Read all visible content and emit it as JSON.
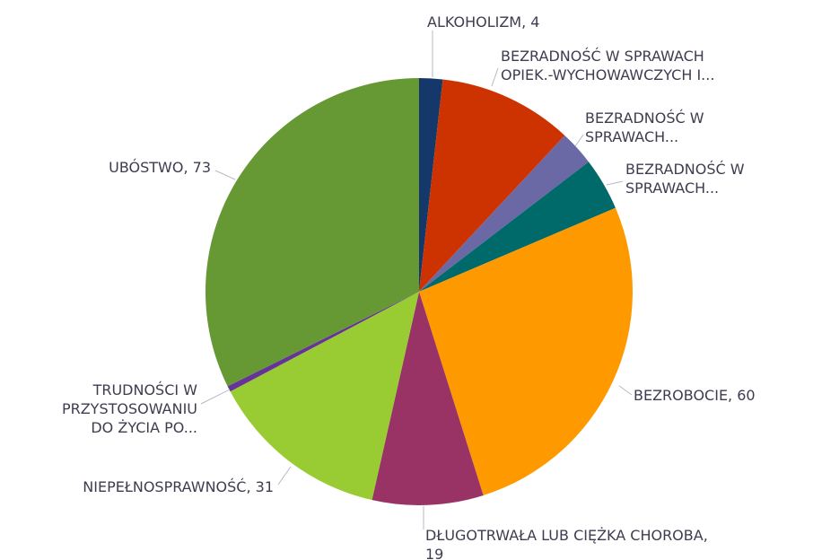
{
  "chart_data": {
    "type": "pie",
    "categories": [
      [
        "ALKOHOLIZM, 4"
      ],
      [
        "BEZRADNOŚĆ W SPRAWACH",
        "OPIEK.-WYCHOWAWCZYCH I..."
      ],
      [
        "BEZRADNOŚĆ W",
        "SPRAWACH..."
      ],
      [
        "BEZRADNOŚĆ W",
        "SPRAWACH..."
      ],
      [
        "BEZROBOCIE, 60"
      ],
      [
        "DŁUGOTRWAŁA LUB CIĘŻKA CHOROBA,",
        "19"
      ],
      [
        "NIEPEŁNOSPRAWNOŚĆ, 31"
      ],
      [
        "TRUDNOŚCI W",
        "PRZYSTOSOWANIU",
        "DO ŻYCIA PO..."
      ],
      [
        "UBÓSTWO, 73"
      ]
    ],
    "values": [
      4,
      23,
      6,
      9,
      60,
      19,
      31,
      1,
      73
    ],
    "colors": [
      "#15386b",
      "#cc3300",
      "#6b68a6",
      "#006a6a",
      "#ff9900",
      "#993366",
      "#99cc33",
      "#663399",
      "#669933"
    ]
  }
}
